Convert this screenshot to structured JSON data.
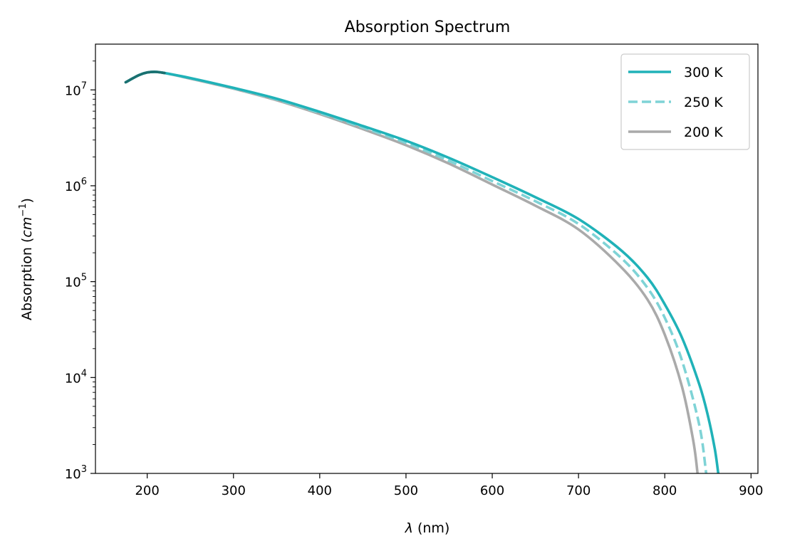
{
  "chart_data": {
    "type": "line",
    "title": "Absorption Spectrum",
    "xlabel": "λ (nm)",
    "ylabel": "Absorption (cm⁻¹)",
    "yscale": "log",
    "xlim": [
      140,
      908
    ],
    "ylim": [
      1000,
      30000000
    ],
    "xticks": [
      200,
      300,
      400,
      500,
      600,
      700,
      800,
      900
    ],
    "xtick_labels": [
      "200",
      "300",
      "400",
      "500",
      "600",
      "700",
      "800",
      "900"
    ],
    "yticks": [
      1000,
      10000,
      100000,
      1000000,
      10000000
    ],
    "ytick_labels": [
      {
        "base": "10",
        "exp": "3"
      },
      {
        "base": "10",
        "exp": "4"
      },
      {
        "base": "10",
        "exp": "5"
      },
      {
        "base": "10",
        "exp": "6"
      },
      {
        "base": "10",
        "exp": "7"
      }
    ],
    "grid": false,
    "legend_position": "top-right",
    "series": [
      {
        "name": "300 K",
        "color": "#20b2b8",
        "style": "solid",
        "x": [
          175,
          190,
          200,
          210,
          220,
          250,
          300,
          350,
          400,
          450,
          500,
          550,
          600,
          650,
          700,
          750,
          780,
          800,
          820,
          840,
          850,
          858,
          862
        ],
        "y": [
          12000000,
          14200000,
          15200000,
          15400000,
          15000000,
          13300000,
          10500000,
          8100000,
          5900000,
          4200000,
          2950000,
          1950000,
          1230000,
          760000,
          450000,
          210000,
          110000,
          58000,
          26000,
          8500,
          4000,
          1800,
          1000
        ]
      },
      {
        "name": "250 K",
        "color": "#7fd3d6",
        "style": "dashed",
        "x": [
          175,
          190,
          200,
          210,
          220,
          250,
          300,
          350,
          400,
          450,
          500,
          550,
          600,
          650,
          700,
          750,
          780,
          800,
          820,
          840,
          848
        ],
        "y": [
          12000000,
          14200000,
          15200000,
          15400000,
          15000000,
          13200000,
          10400000,
          7950000,
          5750000,
          4050000,
          2800000,
          1820000,
          1120000,
          690000,
          400000,
          175000,
          86000,
          42000,
          15000,
          3200,
          1000
        ]
      },
      {
        "name": "200 K",
        "color": "#aaaaaa",
        "style": "solid",
        "x": [
          175,
          190,
          200,
          210,
          220,
          250,
          300,
          350,
          400,
          450,
          500,
          550,
          600,
          650,
          700,
          750,
          780,
          800,
          820,
          833,
          838
        ],
        "y": [
          12000000,
          14200000,
          15200000,
          15400000,
          15000000,
          13100000,
          10300000,
          7800000,
          5600000,
          3900000,
          2650000,
          1700000,
          1030000,
          620000,
          350000,
          140000,
          65000,
          28000,
          8000,
          2200,
          1000
        ]
      }
    ],
    "overlay_line": {
      "color": "#1a7070",
      "x": [
        175,
        190,
        200,
        210,
        220
      ],
      "y": [
        12000000,
        14200000,
        15200000,
        15400000,
        15000000
      ]
    }
  }
}
